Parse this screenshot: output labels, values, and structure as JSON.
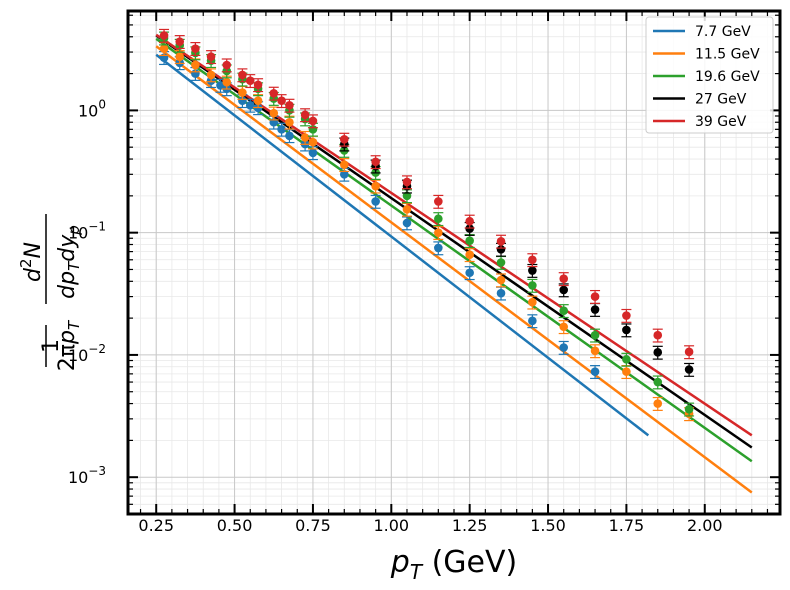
{
  "chart_data": {
    "type": "scatter",
    "title": "",
    "xlabel": "p_T (GeV)",
    "ylabel": "1/(2πp_T) d²N/(dp_T dy_p)",
    "xlim": [
      0.16,
      2.24
    ],
    "ylim": [
      0.0005,
      6.5
    ],
    "yscale": "log",
    "grid": true,
    "legend_position": "top-right",
    "x_ticks": [
      0.25,
      0.5,
      0.75,
      1.0,
      1.25,
      1.5,
      1.75,
      2.0
    ],
    "x_tick_labels": [
      "0.25",
      "0.50",
      "0.75",
      "1.00",
      "1.25",
      "1.50",
      "1.75",
      "2.00"
    ],
    "y_ticks": [
      0.001,
      0.01,
      0.1,
      1
    ],
    "y_tick_labels": [
      {
        "base": "10",
        "exp": "−3"
      },
      {
        "base": "10",
        "exp": "−2"
      },
      {
        "base": "10",
        "exp": "−1"
      },
      {
        "base": "10",
        "exp": "0"
      }
    ],
    "series": [
      {
        "name": "7.7 GeV",
        "color": "#1f77b4",
        "x": [
          0.275,
          0.325,
          0.375,
          0.425,
          0.455,
          0.475,
          0.525,
          0.55,
          0.575,
          0.625,
          0.65,
          0.675,
          0.725,
          0.75,
          0.85,
          0.95,
          1.05,
          1.15,
          1.25,
          1.35,
          1.45,
          1.55,
          1.65
        ],
        "y": [
          2.7,
          2.45,
          2.0,
          1.75,
          1.6,
          1.5,
          1.2,
          1.1,
          1.05,
          0.8,
          0.7,
          0.62,
          0.53,
          0.45,
          0.3,
          0.18,
          0.12,
          0.075,
          0.047,
          0.032,
          0.019,
          0.0115,
          0.0073
        ],
        "fit_x": [
          0.25,
          1.82
        ],
        "fit_y": [
          2.85,
          0.0022
        ]
      },
      {
        "name": "11.5 GeV",
        "color": "#ff7f0e",
        "x": [
          0.275,
          0.325,
          0.375,
          0.425,
          0.475,
          0.525,
          0.575,
          0.625,
          0.675,
          0.725,
          0.75,
          0.85,
          0.95,
          1.05,
          1.15,
          1.25,
          1.35,
          1.45,
          1.55,
          1.65,
          1.75,
          1.85,
          1.95
        ],
        "y": [
          3.2,
          2.75,
          2.35,
          1.95,
          1.7,
          1.4,
          1.2,
          0.95,
          0.8,
          0.6,
          0.55,
          0.36,
          0.24,
          0.155,
          0.1,
          0.066,
          0.041,
          0.027,
          0.017,
          0.0108,
          0.0073,
          0.004,
          0.0033
        ],
        "fit_x": [
          0.25,
          2.15
        ],
        "fit_y": [
          3.35,
          0.00075
        ]
      },
      {
        "name": "19.6 GeV",
        "color": "#2ca02c",
        "x": [
          0.275,
          0.325,
          0.375,
          0.425,
          0.475,
          0.525,
          0.575,
          0.625,
          0.675,
          0.725,
          0.75,
          0.85,
          0.95,
          1.05,
          1.15,
          1.25,
          1.35,
          1.45,
          1.55,
          1.65,
          1.75,
          1.85,
          1.95
        ],
        "y": [
          3.9,
          3.4,
          2.95,
          2.55,
          2.1,
          1.8,
          1.5,
          1.25,
          1.0,
          0.85,
          0.7,
          0.47,
          0.31,
          0.2,
          0.13,
          0.086,
          0.057,
          0.037,
          0.023,
          0.0145,
          0.0092,
          0.006,
          0.0036
        ],
        "fit_x": [
          0.25,
          2.15
        ],
        "fit_y": [
          3.85,
          0.00135
        ]
      },
      {
        "name": "27 GeV",
        "color": "#000000",
        "x": [
          0.85,
          0.95,
          1.05,
          1.25,
          1.35,
          1.45,
          1.55,
          1.65,
          1.75,
          1.85,
          1.95
        ],
        "y": [
          0.53,
          0.35,
          0.24,
          0.108,
          0.073,
          0.049,
          0.034,
          0.0235,
          0.016,
          0.0105,
          0.0076
        ],
        "fit_x": [
          0.25,
          2.15
        ],
        "fit_y": [
          4.1,
          0.00175
        ]
      },
      {
        "name": "39 GeV",
        "color": "#d62728",
        "x": [
          0.275,
          0.325,
          0.375,
          0.425,
          0.475,
          0.525,
          0.55,
          0.575,
          0.625,
          0.65,
          0.675,
          0.725,
          0.75,
          0.85,
          0.95,
          1.05,
          1.15,
          1.25,
          1.35,
          1.45,
          1.55,
          1.65,
          1.75,
          1.85,
          1.95
        ],
        "y": [
          4.1,
          3.65,
          3.2,
          2.75,
          2.35,
          1.95,
          1.75,
          1.62,
          1.38,
          1.2,
          1.1,
          0.92,
          0.82,
          0.58,
          0.38,
          0.26,
          0.18,
          0.124,
          0.085,
          0.06,
          0.042,
          0.03,
          0.021,
          0.0145,
          0.0106
        ],
        "fit_x": [
          0.25,
          2.15
        ],
        "fit_y": [
          4.15,
          0.0022
        ]
      }
    ]
  }
}
